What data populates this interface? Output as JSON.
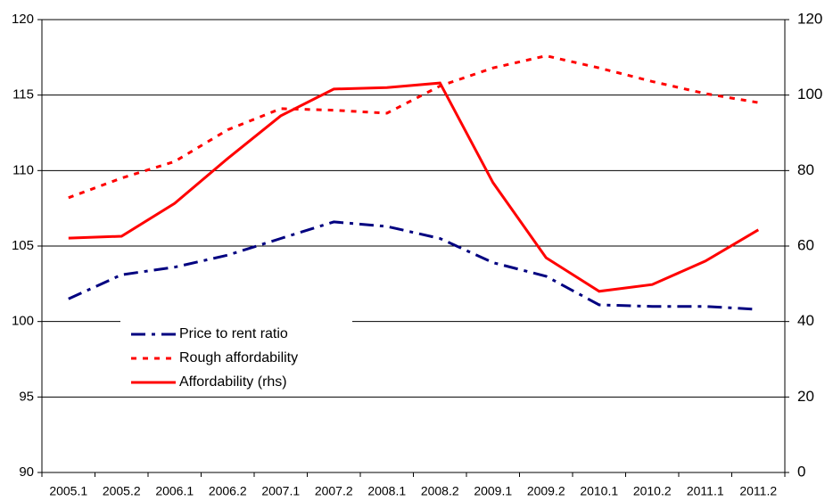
{
  "chart_data": {
    "type": "line",
    "categories": [
      "2005.1",
      "2005.2",
      "2006.1",
      "2006.2",
      "2007.1",
      "2007.2",
      "2008.1",
      "2008.2",
      "2009.1",
      "2009.2",
      "2010.1",
      "2010.2",
      "2011.1",
      "2011.2"
    ],
    "series": [
      {
        "name": "Price to rent ratio",
        "color": "#000080",
        "dash": "dashdot",
        "values": [
          101.5,
          103.1,
          103.6,
          104.4,
          105.5,
          106.6,
          106.3,
          105.5,
          103.9,
          103.0,
          101.1,
          101.0,
          101.0,
          100.8
        ]
      },
      {
        "name": "Rough affordability",
        "color": "#ff0000",
        "dash": "dashed",
        "values": [
          108.2,
          109.5,
          110.6,
          112.7,
          114.1,
          114.0,
          113.8,
          115.6,
          116.8,
          117.6,
          116.8,
          115.9,
          115.1,
          114.5
        ]
      },
      {
        "name": "Affordability (rhs)",
        "color": "#ff0000",
        "dash": "solid",
        "axis": "y2",
        "values": [
          62.1,
          62.6,
          71.3,
          83.2,
          94.5,
          101.6,
          102.0,
          103.2,
          76.8,
          56.9,
          48.0,
          49.8,
          56.0,
          64.3
        ]
      }
    ],
    "ylim": [
      90,
      120
    ],
    "yticks": [
      90,
      95,
      100,
      105,
      110,
      115,
      120
    ],
    "y2lim": [
      0,
      120
    ],
    "y2ticks": [
      0,
      20,
      40,
      60,
      80,
      100,
      120
    ],
    "grid": true,
    "legend": "left"
  }
}
